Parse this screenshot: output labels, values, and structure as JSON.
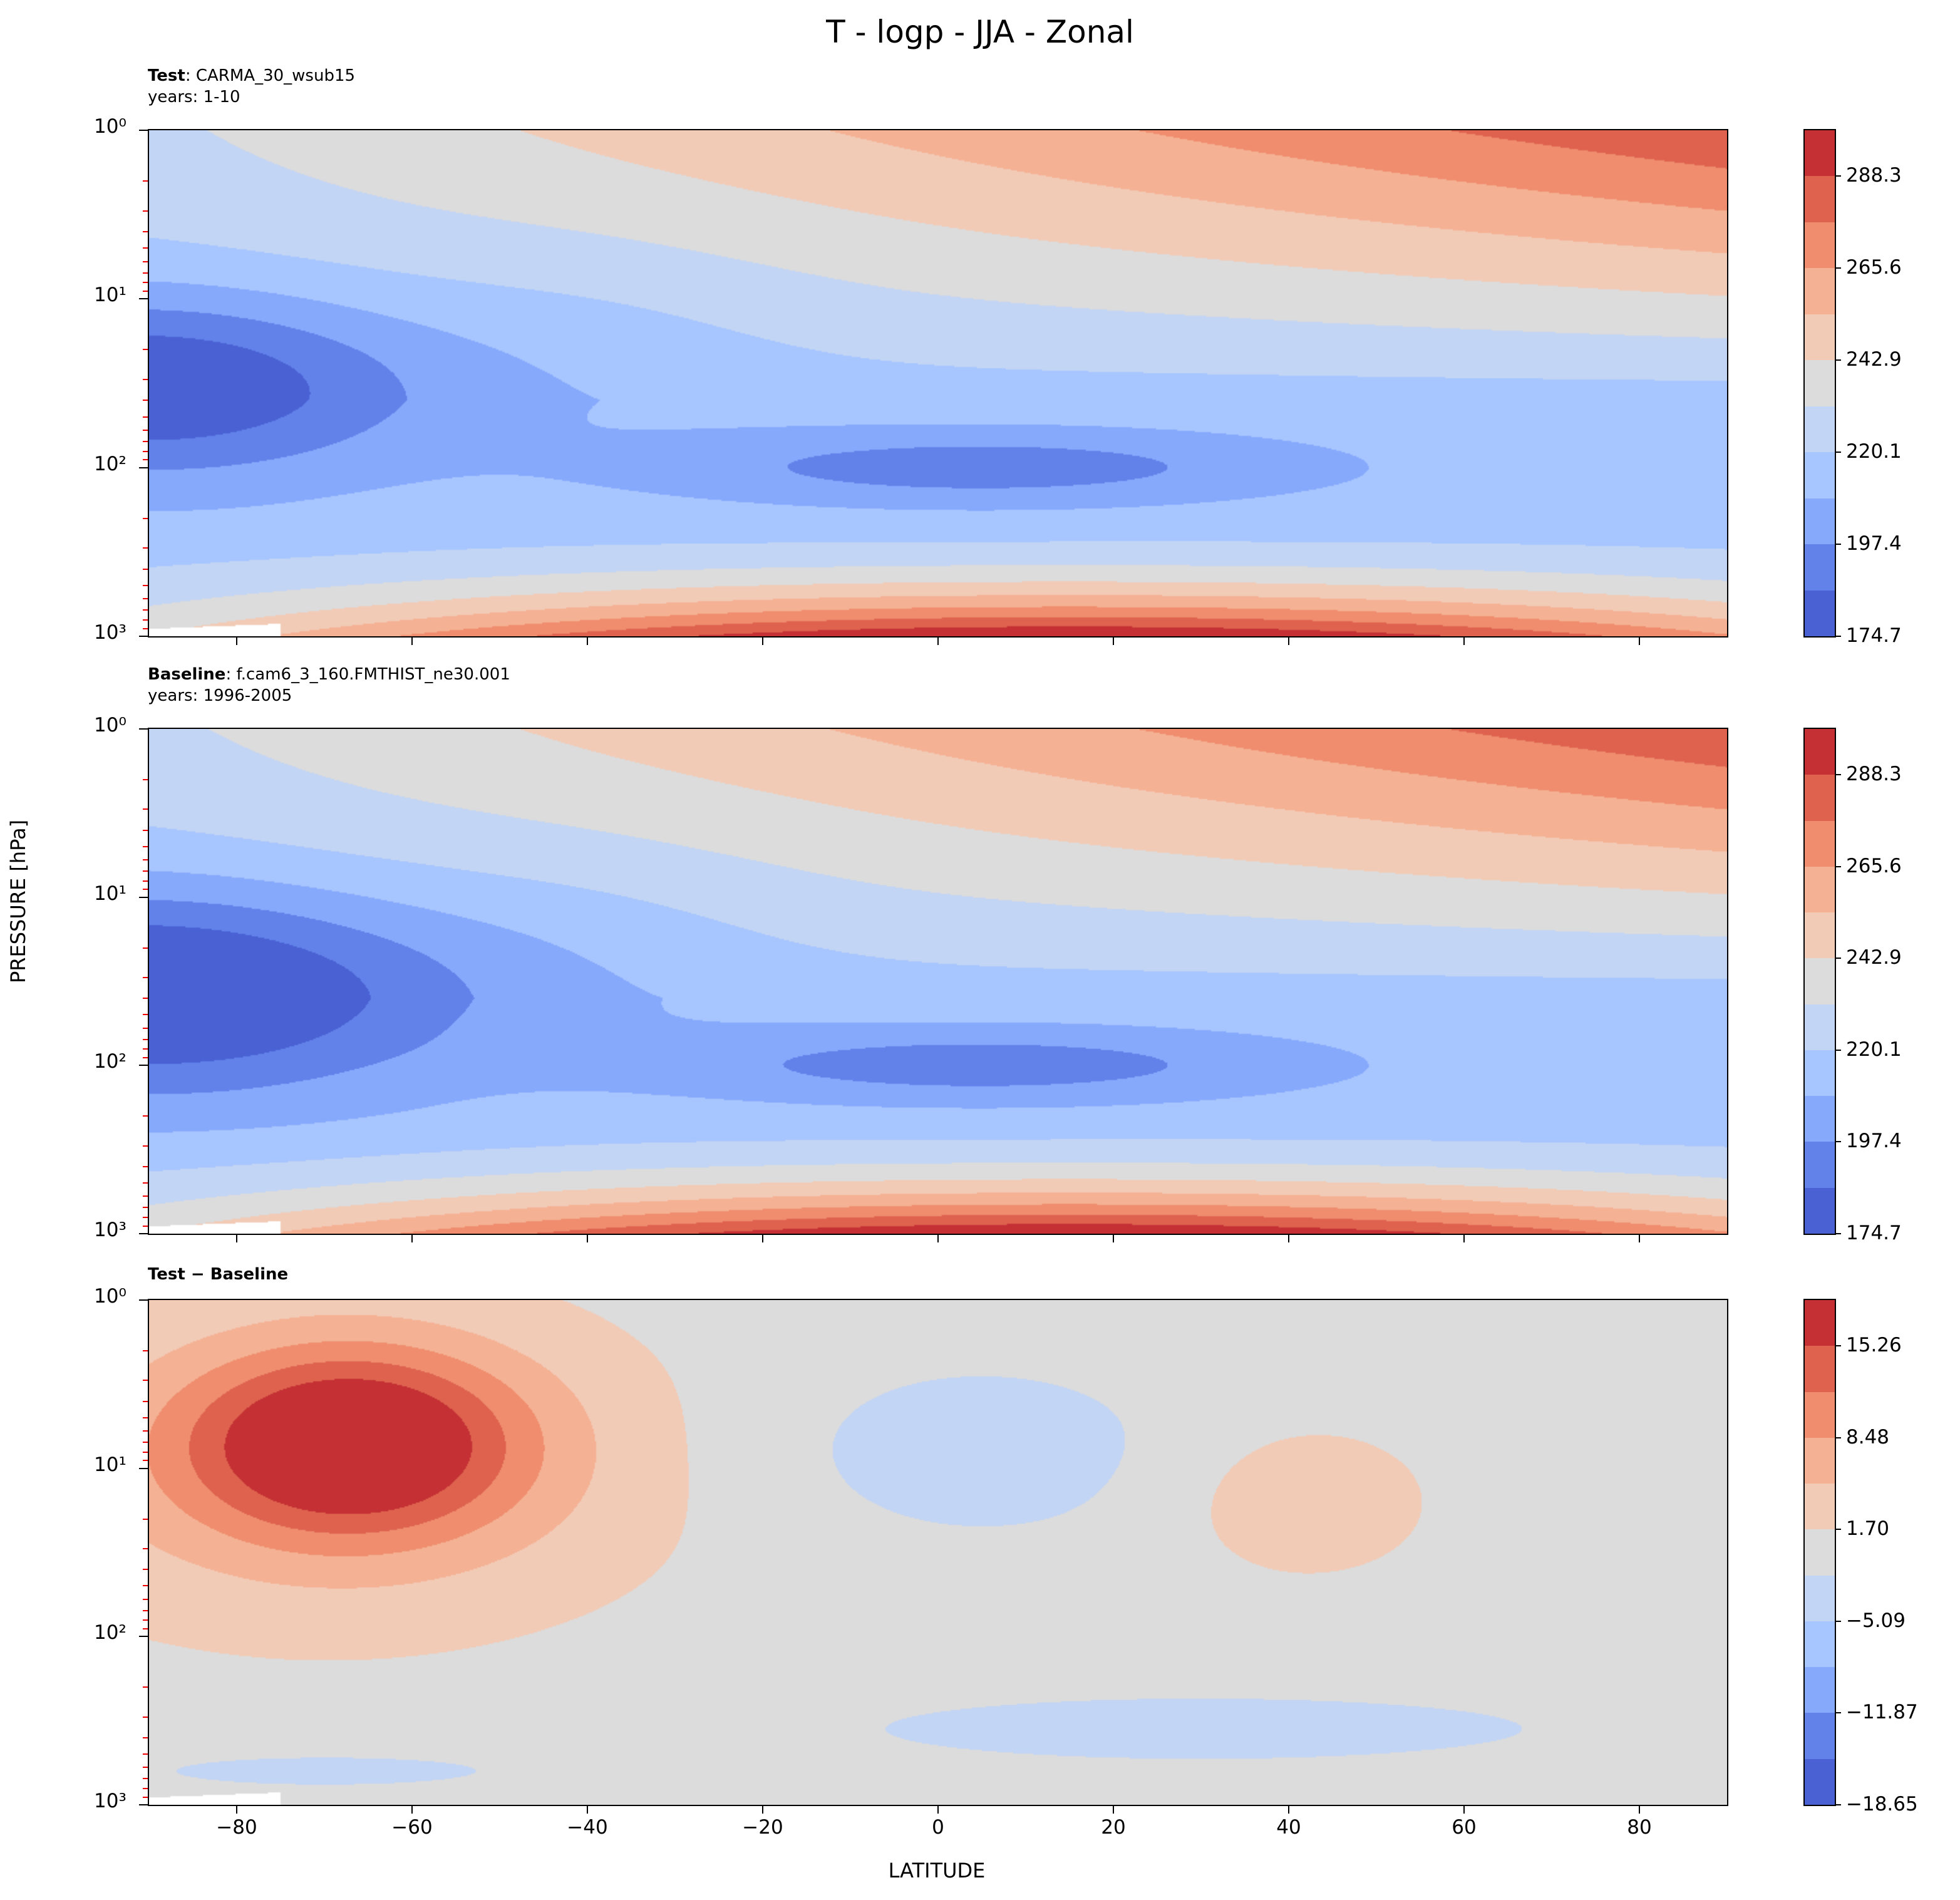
{
  "title": "T - logp - JJA - Zonal",
  "panels": [
    {
      "label_bold": "Test",
      "label_rest": ": CARMA_30_wsub15",
      "years": "years: 1-10"
    },
    {
      "label_bold": "Baseline",
      "label_rest": ": f.cam6_3_160.FMTHIST_ne30.001",
      "years": "years: 1996-2005"
    },
    {
      "label_bold": "Test − Baseline",
      "label_rest": "",
      "years": ""
    }
  ],
  "colors": [
    "#4961d2",
    "#6282ea",
    "#86a9fc",
    "#a7c5fe",
    "#c3d5f4",
    "#dcdcdc",
    "#f2cbb7",
    "#f5b194",
    "#ef8d6e",
    "#de624e",
    "#c43034"
  ],
  "chart_data": [
    {
      "type": "contourf",
      "title": "Test: CARMA_30_wsub15",
      "xlabel": "LATITUDE",
      "ylabel": "PRESSURE [hPa]",
      "xlim": [
        -90,
        90
      ],
      "ylim": [
        1000,
        1
      ],
      "yscale": "log",
      "levels_min": 174.7,
      "level_step": 11.36,
      "n_levels": 11,
      "colorbar_ticks": [
        "174.7",
        "197.4",
        "220.1",
        "242.9",
        "265.6",
        "288.3"
      ]
    },
    {
      "type": "contourf",
      "title": "Baseline: f.cam6_3_160.FMTHIST_ne30.001",
      "xlabel": "LATITUDE",
      "ylabel": "PRESSURE [hPa]",
      "xlim": [
        -90,
        90
      ],
      "ylim": [
        1000,
        1
      ],
      "yscale": "log",
      "levels_min": 174.7,
      "level_step": 11.36,
      "n_levels": 11,
      "colorbar_ticks": [
        "174.7",
        "197.4",
        "220.1",
        "242.9",
        "265.6",
        "288.3"
      ]
    },
    {
      "type": "contourf",
      "title": "Test - Baseline",
      "xlabel": "LATITUDE",
      "ylabel": "PRESSURE [hPa]",
      "xlim": [
        -90,
        90
      ],
      "ylim": [
        1000,
        1
      ],
      "yscale": "log",
      "levels_min": -18.65,
      "level_step": 3.39,
      "n_levels": 11,
      "colorbar_ticks": [
        "−18.65",
        "−11.87",
        "−5.09",
        "1.70",
        "8.48",
        "15.26"
      ]
    }
  ],
  "xticks": [
    "−80",
    "−60",
    "−40",
    "−20",
    "0",
    "20",
    "40",
    "60",
    "80"
  ],
  "xtick_values": [
    -80,
    -60,
    -40,
    -20,
    0,
    20,
    40,
    60,
    80
  ],
  "yticks": [
    "10⁰",
    "10¹",
    "10²",
    "10³"
  ],
  "axis": {
    "xlabel": "LATITUDE",
    "ylabel": "PRESSURE [hPa]"
  }
}
